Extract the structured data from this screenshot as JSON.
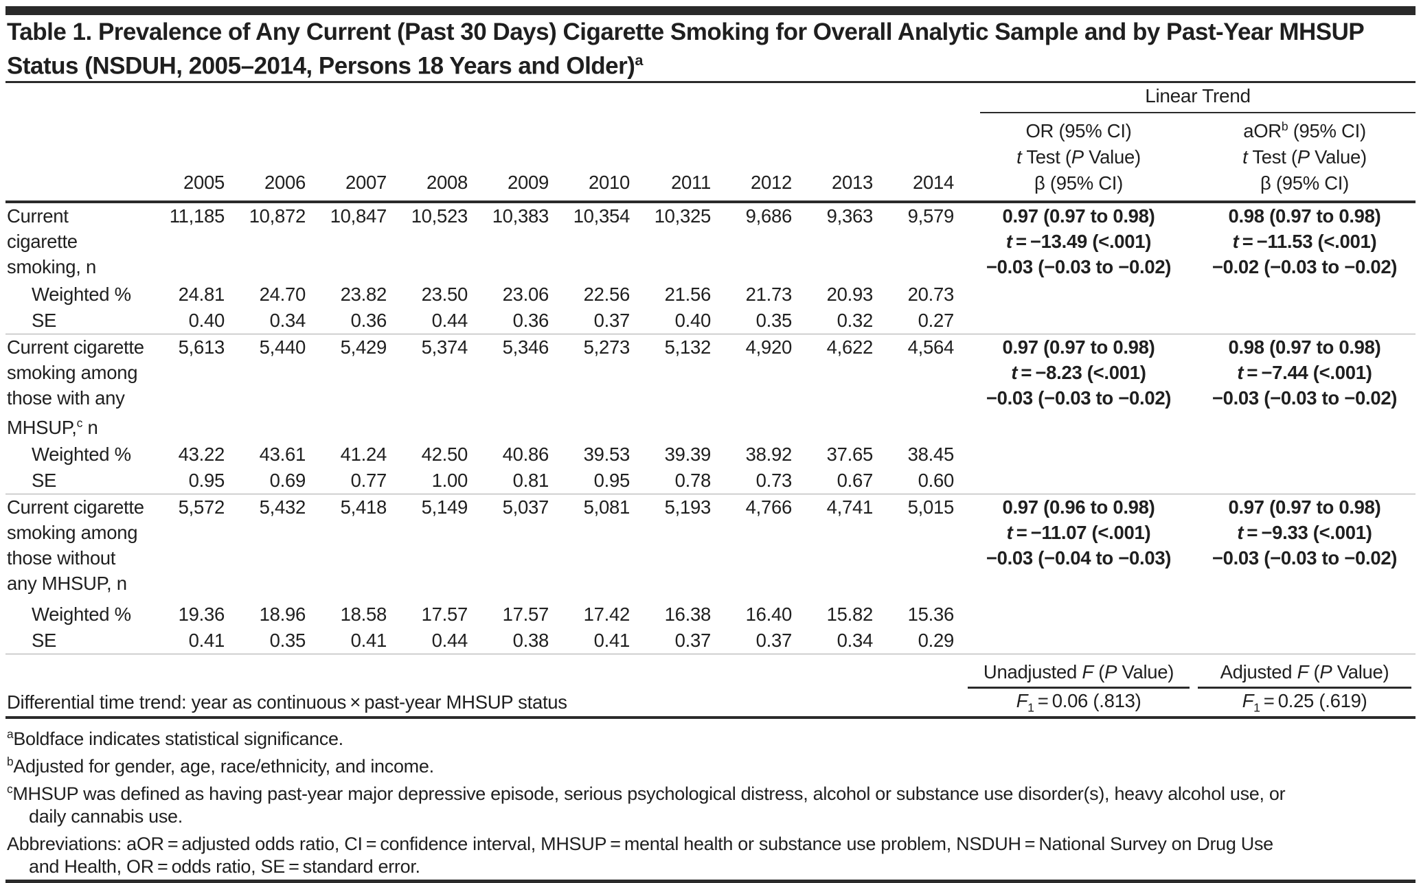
{
  "title": {
    "line1": "Table 1. Prevalence of Any Current (Past 30 Days) Cigarette Smoking for Overall Analytic Sample and by Past-Year MHSUP",
    "line2": "Status (NSDUH, 2005–2014, Persons 18 Years and Older)",
    "sup": "a"
  },
  "header": {
    "linear_trend": "Linear Trend",
    "years": [
      "2005",
      "2006",
      "2007",
      "2008",
      "2009",
      "2010",
      "2011",
      "2012",
      "2013",
      "2014"
    ],
    "or_line1": "OR (95% CI)",
    "aor_pre": "aOR",
    "aor_sup": "b",
    "aor_post": " (95% CI)",
    "t_sym": "t",
    "ttest_mid": " Test (",
    "p_sym": "P",
    "ttest_post": " Value)",
    "beta_line": "β (95% CI)"
  },
  "blocks": [
    {
      "label": {
        "l1": "Current",
        "l2": "cigarette",
        "l3": "smoking, n"
      },
      "n": [
        "11,185",
        "10,872",
        "10,847",
        "10,523",
        "10,383",
        "10,354",
        "10,325",
        "9,686",
        "9,363",
        "9,579"
      ],
      "weighted_label": "Weighted %",
      "weighted": [
        "24.81",
        "24.70",
        "23.82",
        "23.50",
        "23.06",
        "22.56",
        "21.56",
        "21.73",
        "20.93",
        "20.73"
      ],
      "se_label": "SE",
      "se": [
        "0.40",
        "0.34",
        "0.36",
        "0.44",
        "0.36",
        "0.37",
        "0.40",
        "0.35",
        "0.32",
        "0.27"
      ],
      "or": {
        "l1": "0.97 (0.97 to 0.98)",
        "t": "t",
        "l2": " = −13.49 (<.001)",
        "l3": "−0.03 (−0.03 to −0.02)"
      },
      "aor": {
        "l1": "0.98 (0.97 to 0.98)",
        "t": "t",
        "l2": " = −11.53 (<.001)",
        "l3": "−0.02 (−0.03 to −0.02)"
      }
    },
    {
      "label": {
        "l1": "Current cigarette",
        "l2": "smoking among",
        "l3": "those with any",
        "l4_pre": "MHSUP,",
        "l4_sup": "c",
        "l4_post": " n"
      },
      "n": [
        "5,613",
        "5,440",
        "5,429",
        "5,374",
        "5,346",
        "5,273",
        "5,132",
        "4,920",
        "4,622",
        "4,564"
      ],
      "weighted_label": "Weighted %",
      "weighted": [
        "43.22",
        "43.61",
        "41.24",
        "42.50",
        "40.86",
        "39.53",
        "39.39",
        "38.92",
        "37.65",
        "38.45"
      ],
      "se_label": "SE",
      "se": [
        "0.95",
        "0.69",
        "0.77",
        "1.00",
        "0.81",
        "0.95",
        "0.78",
        "0.73",
        "0.67",
        "0.60"
      ],
      "or": {
        "l1": "0.97 (0.97 to 0.98)",
        "t": "t",
        "l2": " = −8.23 (<.001)",
        "l3": "−0.03 (−0.03 to −0.02)"
      },
      "aor": {
        "l1": "0.98 (0.97 to 0.98)",
        "t": "t",
        "l2": " = −7.44 (<.001)",
        "l3": "−0.03 (−0.03 to −0.02)"
      }
    },
    {
      "label": {
        "l1": "Current cigarette",
        "l2": "smoking among",
        "l3": "those without",
        "l4": "any MHSUP, n"
      },
      "n": [
        "5,572",
        "5,432",
        "5,418",
        "5,149",
        "5,037",
        "5,081",
        "5,193",
        "4,766",
        "4,741",
        "5,015"
      ],
      "weighted_label": "Weighted %",
      "weighted": [
        "19.36",
        "18.96",
        "18.58",
        "17.57",
        "17.57",
        "17.42",
        "16.38",
        "16.40",
        "15.82",
        "15.36"
      ],
      "se_label": "SE",
      "se": [
        "0.41",
        "0.35",
        "0.41",
        "0.44",
        "0.38",
        "0.41",
        "0.37",
        "0.37",
        "0.34",
        "0.29"
      ],
      "or": {
        "l1": "0.97 (0.96 to 0.98)",
        "t": "t",
        "l2": " = −11.07 (<.001)",
        "l3": "−0.03 (−0.04 to −0.03)"
      },
      "aor": {
        "l1": "0.97 (0.97 to 0.98)",
        "t": "t",
        "l2": " = −9.33 (<.001)",
        "l3": "−0.03 (−0.03 to −0.02)"
      }
    }
  ],
  "f_section": {
    "unadj_hdr": {
      "pre": "Unadjusted ",
      "f": "F",
      "mid": " (",
      "p": "P",
      "post": " Value)"
    },
    "adj_hdr": {
      "pre": "Adjusted ",
      "f": "F",
      "mid": " (",
      "p": "P",
      "post": " Value)"
    },
    "row_label": "Differential time trend: year as continuous × past-year MHSUP status",
    "unadj_val": {
      "f": "F",
      "sub": "1",
      "rest": " = 0.06 (.813)"
    },
    "adj_val": {
      "f": "F",
      "sub": "1",
      "rest": " = 0.25 (.619)"
    }
  },
  "footnotes": [
    {
      "sup": "a",
      "line1": "Boldface indicates statistical significance."
    },
    {
      "sup": "b",
      "line1": "Adjusted for gender, age, race/ethnicity, and income."
    },
    {
      "sup": "c",
      "line1": "MHSUP was defined as having past-year major depressive episode, serious psychological distress, alcohol or substance use disorder(s), heavy alcohol use, or",
      "line2": "daily cannabis use."
    },
    {
      "sup": "",
      "line1": "Abbreviations: aOR = adjusted odds ratio, CI = confidence interval, MHSUP = mental health or substance use problem, NSDUH = National Survey on Drug Use",
      "line2": "and Health, OR = odds ratio, SE = standard error."
    }
  ],
  "colors": {
    "rule_dark": "#2a2a2a",
    "rule_gray": "#a8a8a8",
    "text": "#1f1f1f"
  }
}
